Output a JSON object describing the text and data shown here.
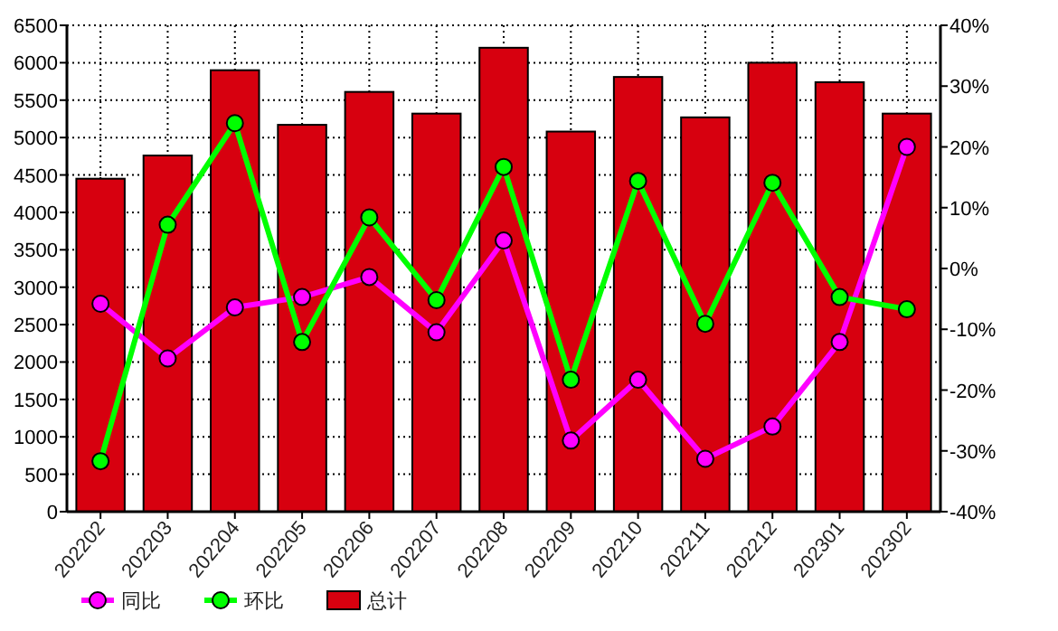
{
  "chart_data": {
    "type": "bar",
    "categories": [
      "202202",
      "202203",
      "202204",
      "202205",
      "202206",
      "202207",
      "202208",
      "202209",
      "202210",
      "202211",
      "202212",
      "202301",
      "202302"
    ],
    "series": [
      {
        "name": "同比",
        "type": "line",
        "axis": "y2",
        "color": "#ff00ff",
        "values": [
          -5.8,
          -14.8,
          -6.4,
          -4.7,
          -1.4,
          -10.5,
          4.6,
          -28.3,
          -18.3,
          -31.3,
          -26.0,
          -12.1,
          20.0
        ]
      },
      {
        "name": "环比",
        "type": "line",
        "axis": "y2",
        "color": "#00ff00",
        "values": [
          -31.7,
          7.2,
          23.9,
          -12.1,
          8.4,
          -5.2,
          16.7,
          -18.3,
          14.4,
          -9.1,
          14.1,
          -4.7,
          -6.7
        ]
      },
      {
        "name": "总计",
        "color": "#d7000f",
        "values": [
          4450,
          4760,
          5900,
          5170,
          5610,
          5320,
          6200,
          5080,
          5810,
          5270,
          6000,
          5740,
          5320
        ]
      }
    ],
    "ylim": [
      0,
      6500
    ],
    "yticks": [
      0,
      500,
      1000,
      1500,
      2000,
      2500,
      3000,
      3500,
      4000,
      4500,
      5000,
      5500,
      6000,
      6500
    ],
    "y2lim": [
      -40,
      40
    ],
    "y2ticks": [
      {
        "value": -40,
        "label": "-40%"
      },
      {
        "value": -30,
        "label": "-30%"
      },
      {
        "value": -20,
        "label": "-20%"
      },
      {
        "value": -10,
        "label": "-10%"
      },
      {
        "value": 0,
        "label": "0%"
      },
      {
        "value": 10,
        "label": "10%"
      },
      {
        "value": 20,
        "label": "20%"
      },
      {
        "value": 30,
        "label": "30%"
      },
      {
        "value": 40,
        "label": "40%"
      }
    ],
    "grid": true,
    "legend": "bottom left",
    "marker": "circle"
  }
}
